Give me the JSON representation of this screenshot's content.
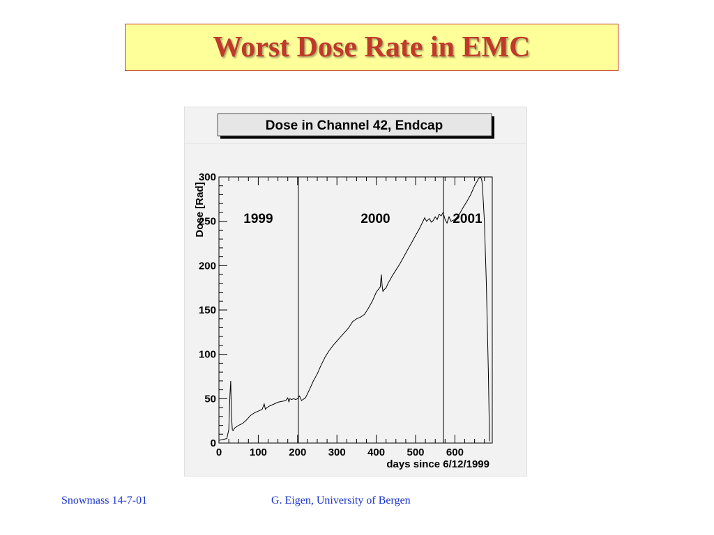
{
  "slide": {
    "title": "Worst Dose Rate in EMC",
    "footer_left": "Snowmass 14-7-01",
    "footer_right": "G. Eigen, University of Bergen"
  },
  "chart_data": {
    "type": "line",
    "title": "Dose in Channel 42, Endcap",
    "xlabel": "days since 6/12/1999",
    "ylabel": "Dose [Rad]",
    "xlim": [
      0,
      695
    ],
    "ylim": [
      0,
      300
    ],
    "x_ticks": [
      0,
      100,
      200,
      300,
      400,
      500,
      600
    ],
    "y_ticks": [
      0,
      50,
      100,
      150,
      200,
      250,
      300
    ],
    "year_dividers": [
      202,
      571
    ],
    "annotations": [
      {
        "text": "1999",
        "x": 100,
        "y": 248
      },
      {
        "text": "2000",
        "x": 398,
        "y": 248
      },
      {
        "text": "2001",
        "x": 632,
        "y": 248
      }
    ],
    "series": [
      {
        "x": [
          0,
          10,
          20,
          25,
          28,
          30,
          32,
          34,
          36,
          40,
          50,
          60,
          70,
          80,
          90,
          100,
          110,
          115,
          118,
          122,
          130,
          140,
          150,
          160,
          170,
          175,
          178,
          180,
          185,
          190,
          195,
          200,
          205,
          210,
          220,
          230,
          240,
          250,
          260,
          270,
          280,
          290,
          300,
          310,
          320,
          330,
          340,
          350,
          360,
          370,
          380,
          390,
          400,
          410,
          413,
          415,
          417,
          420,
          425,
          430,
          440,
          450,
          460,
          470,
          480,
          490,
          500,
          510,
          520,
          523,
          528,
          535,
          540,
          545,
          550,
          555,
          560,
          565,
          570,
          575,
          580,
          585,
          590,
          600,
          610,
          620,
          630,
          640,
          650,
          660,
          665,
          668,
          670,
          675,
          680,
          685,
          688
        ],
        "y": [
          3,
          4,
          5,
          15,
          55,
          70,
          30,
          15,
          14,
          17,
          20,
          22,
          26,
          31,
          34,
          36,
          38,
          44,
          38,
          40,
          42,
          44,
          46,
          47,
          48,
          51,
          46,
          50,
          49,
          50,
          49,
          50,
          53,
          48,
          51,
          60,
          70,
          78,
          88,
          97,
          104,
          110,
          115,
          120,
          125,
          130,
          137,
          140,
          142,
          145,
          152,
          160,
          170,
          176,
          190,
          177,
          171,
          173,
          175,
          180,
          188,
          195,
          202,
          210,
          218,
          226,
          234,
          242,
          251,
          254,
          250,
          253,
          249,
          251,
          255,
          252,
          258,
          256,
          260,
          252,
          248,
          255,
          250,
          252,
          257,
          265,
          272,
          280,
          290,
          298,
          300,
          297,
          290,
          250,
          180,
          80,
          2
        ]
      }
    ]
  }
}
